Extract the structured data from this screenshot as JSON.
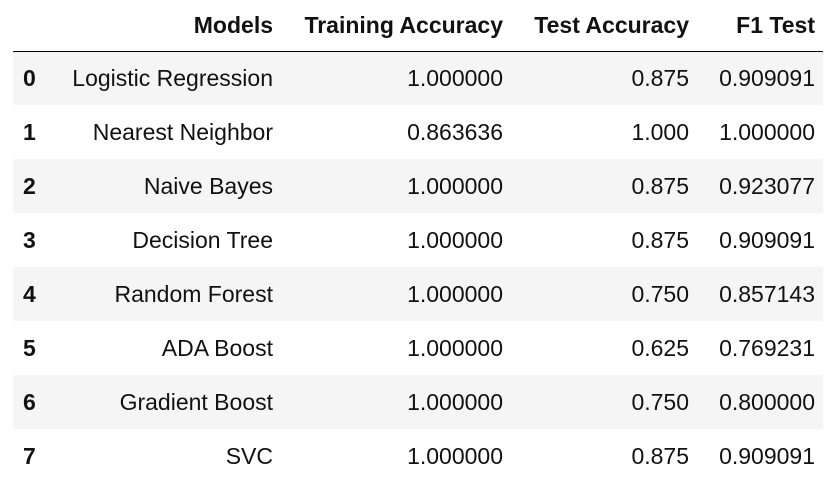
{
  "table": {
    "columns": {
      "index": "",
      "models": "Models",
      "training_accuracy": "Training Accuracy",
      "test_accuracy": "Test Accuracy",
      "f1_test": "F1 Test"
    },
    "rows": [
      {
        "index": "0",
        "model": "Logistic Regression",
        "train": "1.000000",
        "test": "0.875",
        "f1": "0.909091"
      },
      {
        "index": "1",
        "model": "Nearest Neighbor",
        "train": "0.863636",
        "test": "1.000",
        "f1": "1.000000"
      },
      {
        "index": "2",
        "model": "Naive Bayes",
        "train": "1.000000",
        "test": "0.875",
        "f1": "0.923077"
      },
      {
        "index": "3",
        "model": "Decision Tree",
        "train": "1.000000",
        "test": "0.875",
        "f1": "0.909091"
      },
      {
        "index": "4",
        "model": "Random Forest",
        "train": "1.000000",
        "test": "0.750",
        "f1": "0.857143"
      },
      {
        "index": "5",
        "model": "ADA Boost",
        "train": "1.000000",
        "test": "0.625",
        "f1": "0.769231"
      },
      {
        "index": "6",
        "model": "Gradient Boost",
        "train": "1.000000",
        "test": "0.750",
        "f1": "0.800000"
      },
      {
        "index": "7",
        "model": "SVC",
        "train": "1.000000",
        "test": "0.875",
        "f1": "0.909091"
      }
    ]
  },
  "colors": {
    "striped_row": "#f5f5f5",
    "text": "#111111",
    "header_rule": "#000000"
  }
}
